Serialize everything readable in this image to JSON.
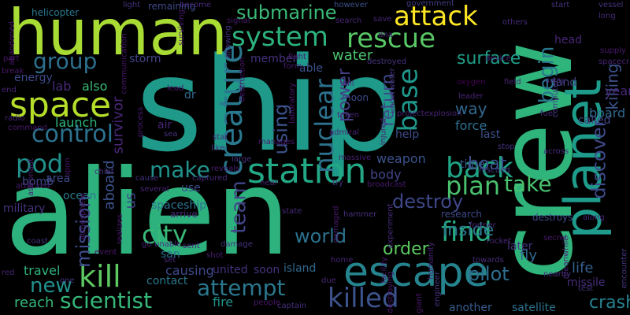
{
  "word_cloud": {
    "words": [
      {
        "text": "ship",
        "color": "#1f9a8a"
      },
      {
        "text": "alien",
        "color": "#2db27d"
      },
      {
        "text": "crew",
        "color": "#2fb47c"
      },
      {
        "text": "human",
        "color": "#a8db34"
      },
      {
        "text": "planet",
        "color": "#1e9b8a"
      },
      {
        "text": "escape",
        "color": "#25848e"
      },
      {
        "text": "attack",
        "color": "#fde725"
      },
      {
        "text": "rescue",
        "color": "#58c765"
      },
      {
        "text": "station",
        "color": "#22a884"
      },
      {
        "text": "space",
        "color": "#b5de2b"
      },
      {
        "text": "system",
        "color": "#2db27d"
      },
      {
        "text": "creature",
        "color": "#2a788e"
      },
      {
        "text": "killed",
        "color": "#3b528b"
      },
      {
        "text": "kill",
        "color": "#5ec962"
      },
      {
        "text": "control",
        "color": "#2c728e"
      },
      {
        "text": "find",
        "color": "#27ad81"
      },
      {
        "text": "base",
        "color": "#1f988b"
      },
      {
        "text": "scientist",
        "color": "#35b779"
      },
      {
        "text": "attempt",
        "color": "#2a788e"
      },
      {
        "text": "submarine",
        "color": "#3aba76"
      },
      {
        "text": "back",
        "color": "#20a486"
      },
      {
        "text": "group",
        "color": "#2d708e"
      },
      {
        "text": "pod",
        "color": "#21918c"
      },
      {
        "text": "nuclear",
        "color": "#2c728e"
      },
      {
        "text": "city",
        "color": "#38b977"
      },
      {
        "text": "plan",
        "color": "#4ac16d"
      },
      {
        "text": "make",
        "color": "#21918c"
      },
      {
        "text": "take",
        "color": "#48c16e"
      },
      {
        "text": "begin",
        "color": "#2a788e"
      },
      {
        "text": "surface",
        "color": "#1f9e89"
      },
      {
        "text": "discover",
        "color": "#3e4a89"
      },
      {
        "text": "destroy",
        "color": "#3f4788"
      },
      {
        "text": "pilot",
        "color": "#2e6e8e"
      },
      {
        "text": "crash",
        "color": "#26828e"
      },
      {
        "text": "world",
        "color": "#2c718e"
      },
      {
        "text": "new",
        "color": "#21918c"
      },
      {
        "text": "team",
        "color": "#414487"
      },
      {
        "text": "mission",
        "color": "#3e4c8a"
      },
      {
        "text": "return",
        "color": "#3e4a89"
      },
      {
        "text": "water",
        "color": "#4ac16d"
      },
      {
        "text": "using",
        "color": "#3b528b"
      },
      {
        "text": "power",
        "color": "#433e85"
      },
      {
        "text": "inside",
        "color": "#2a788e"
      },
      {
        "text": "order",
        "color": "#5ec962"
      },
      {
        "text": "killing",
        "color": "#3b528b"
      },
      {
        "text": "boat",
        "color": "#3b528b"
      },
      {
        "text": "way",
        "color": "#31688e"
      },
      {
        "text": "survivor",
        "color": "#482677"
      },
      {
        "text": "fly",
        "color": "#31688e"
      },
      {
        "text": "life",
        "color": "#355f8d"
      },
      {
        "text": "new",
        "color": "#2c728e"
      },
      {
        "text": "reach",
        "color": "#35b779"
      },
      {
        "text": "travel",
        "color": "#2db27d"
      },
      {
        "text": "lab",
        "color": "#482878"
      },
      {
        "text": "also",
        "color": "#3aba76"
      },
      {
        "text": "launch",
        "color": "#2fb47c"
      },
      {
        "text": "aboard",
        "color": "#3b528b"
      },
      {
        "text": "us",
        "color": "#3f4788"
      },
      {
        "text": "causing",
        "color": "#3e4989"
      },
      {
        "text": "fire",
        "color": "#21918c"
      },
      {
        "text": "island",
        "color": "#31688e"
      },
      {
        "text": "soon",
        "color": "#46337e"
      },
      {
        "text": "united",
        "color": "#46327e"
      },
      {
        "text": "board",
        "color": "#31688e"
      },
      {
        "text": "called",
        "color": "#414487"
      },
      {
        "text": "force",
        "color": "#2d708e"
      },
      {
        "text": "year",
        "color": "#482878"
      },
      {
        "text": "land",
        "color": "#414487"
      },
      {
        "text": "weapon",
        "color": "#3b528b"
      },
      {
        "text": "body",
        "color": "#414487"
      },
      {
        "text": "use",
        "color": "#3e4c8a"
      },
      {
        "text": "air",
        "color": "#482677"
      },
      {
        "text": "dr",
        "color": "#31688e"
      },
      {
        "text": "san",
        "color": "#2c728e"
      },
      {
        "text": "contact",
        "color": "#2a788e"
      },
      {
        "text": "missile",
        "color": "#472d7b"
      },
      {
        "text": "satellite",
        "color": "#2c728e"
      },
      {
        "text": "another",
        "color": "#365c8d"
      },
      {
        "text": "ocean",
        "color": "#2a788e"
      },
      {
        "text": "energy",
        "color": "#3e4a89"
      },
      {
        "text": "storm",
        "color": "#414487"
      },
      {
        "text": "member",
        "color": "#46327e"
      },
      {
        "text": "able",
        "color": "#3b528b"
      },
      {
        "text": "military",
        "color": "#46337e"
      },
      {
        "text": "bomb",
        "color": "#3e4a89"
      },
      {
        "text": "area",
        "color": "#3e4989"
      },
      {
        "text": "head",
        "color": "#482677"
      },
      {
        "text": "time",
        "color": "#38588c"
      },
      {
        "text": "help",
        "color": "#3e4c8a"
      },
      {
        "text": "last",
        "color": "#3b528b"
      },
      {
        "text": "later",
        "color": "#46337e"
      },
      {
        "text": "spaceship",
        "color": "#2c728e"
      },
      {
        "text": "arrive",
        "color": "#472d7b"
      },
      {
        "text": "research",
        "color": "#3e4a89"
      },
      {
        "text": "destroys",
        "color": "#3e4c8a"
      },
      {
        "text": "moon",
        "color": "#3e4989"
      },
      {
        "text": "remaining",
        "color": "#3e4989"
      },
      {
        "text": "helicopter",
        "color": "#2a788e"
      },
      {
        "text": "light",
        "color": "#46327e"
      },
      {
        "text": "become",
        "color": "#472a7a"
      },
      {
        "text": "however",
        "color": "#3b528b"
      },
      {
        "text": "government",
        "color": "#433e85"
      },
      {
        "text": "start",
        "color": "#46327e"
      },
      {
        "text": "vessel",
        "color": "#46327e"
      },
      {
        "text": "others",
        "color": "#472a7a"
      },
      {
        "text": "long",
        "color": "#472a7a"
      },
      {
        "text": "supply",
        "color": "#481a6c"
      },
      {
        "text": "spacecraft",
        "color": "#482475"
      },
      {
        "text": "device",
        "color": "#482475"
      },
      {
        "text": "away",
        "color": "#472d7b"
      },
      {
        "text": "field",
        "color": "#482475"
      },
      {
        "text": "fuel",
        "color": "#472a7a"
      },
      {
        "text": "computer",
        "color": "#433e85"
      },
      {
        "text": "oxygen",
        "color": "#440154"
      },
      {
        "text": "leader",
        "color": "#482475"
      },
      {
        "text": "stop",
        "color": "#46327e"
      },
      {
        "text": "across",
        "color": "#472a7a"
      },
      {
        "text": "rescued",
        "color": "#433e85"
      },
      {
        "text": "former",
        "color": "#482878"
      },
      {
        "text": "rocket",
        "color": "#482878"
      },
      {
        "text": "secret",
        "color": "#481769"
      },
      {
        "text": "along",
        "color": "#482475"
      },
      {
        "text": "encounter",
        "color": "#46337e"
      },
      {
        "text": "towards",
        "color": "#472d7b"
      },
      {
        "text": "nearby",
        "color": "#46327e"
      },
      {
        "text": "test",
        "color": "#46327e"
      },
      {
        "text": "lead",
        "color": "#481a6c"
      },
      {
        "text": "sea",
        "color": "#46327e"
      },
      {
        "text": "star",
        "color": "#472d7b"
      },
      {
        "text": "like",
        "color": "#46327e"
      },
      {
        "text": "large",
        "color": "#46327e"
      },
      {
        "text": "reveals",
        "color": "#481f70"
      },
      {
        "text": "near",
        "color": "#482475"
      },
      {
        "text": "try",
        "color": "#46327e"
      },
      {
        "text": "cause",
        "color": "#46327e"
      },
      {
        "text": "several",
        "color": "#482475"
      },
      {
        "text": "captured",
        "color": "#472a7a"
      },
      {
        "text": "massive",
        "color": "#481f70"
      },
      {
        "text": "broadcast",
        "color": "#481a6c"
      },
      {
        "text": "still",
        "color": "#472d7b"
      },
      {
        "text": "taken",
        "color": "#482475"
      },
      {
        "text": "admiral",
        "color": "#482475"
      },
      {
        "text": "save",
        "color": "#482475"
      },
      {
        "text": "dna",
        "color": "#482677"
      },
      {
        "text": "search",
        "color": "#482475"
      },
      {
        "text": "signal",
        "color": "#481a6c"
      },
      {
        "text": "fight",
        "color": "#481a6c"
      },
      {
        "text": "destroyed",
        "color": "#46327e"
      },
      {
        "text": "chief",
        "color": "#46327e"
      },
      {
        "text": "astronaut",
        "color": "#481f70"
      },
      {
        "text": "attacked",
        "color": "#481f70"
      },
      {
        "text": "command",
        "color": "#481a6c"
      },
      {
        "text": "radio",
        "color": "#482475"
      },
      {
        "text": "end",
        "color": "#482475"
      },
      {
        "text": "coast",
        "color": "#46327e"
      },
      {
        "text": "event",
        "color": "#481769"
      },
      {
        "text": "unable",
        "color": "#46327e"
      },
      {
        "text": "state",
        "color": "#472a7a"
      },
      {
        "text": "set",
        "color": "#482878"
      },
      {
        "text": "damage",
        "color": "#46327e"
      },
      {
        "text": "people",
        "color": "#481769"
      },
      {
        "text": "captain",
        "color": "#472d7b"
      },
      {
        "text": "home",
        "color": "#482475"
      },
      {
        "text": "due",
        "color": "#482475"
      },
      {
        "text": "one",
        "color": "#46327e"
      },
      {
        "text": "red",
        "color": "#482475"
      },
      {
        "text": "go",
        "color": "#482475"
      },
      {
        "text": "part",
        "color": "#481769"
      },
      {
        "text": "break",
        "color": "#481769"
      },
      {
        "text": "process",
        "color": "#481a6c"
      },
      {
        "text": "form",
        "color": "#481a6c"
      },
      {
        "text": "manages",
        "color": "#481a6c"
      },
      {
        "text": "injured",
        "color": "#481a6c"
      },
      {
        "text": "hammer",
        "color": "#46327e"
      },
      {
        "text": "facility",
        "color": "#481a6c"
      },
      {
        "text": "humanity",
        "color": "#482475"
      },
      {
        "text": "engineer",
        "color": "#46327e"
      },
      {
        "text": "giant",
        "color": "#481769"
      },
      {
        "text": "meanwhile",
        "color": "#482475"
      },
      {
        "text": "projectexplosion",
        "color": "#482475"
      },
      {
        "text": "allowing",
        "color": "#46327e"
      },
      {
        "text": "surviving",
        "color": "#481a6c"
      },
      {
        "text": "communication",
        "color": "#481769"
      },
      {
        "text": "abandoned",
        "color": "#481769"
      },
      {
        "text": "destruction",
        "color": "#481769"
      },
      {
        "text": "laboratory",
        "color": "#481769"
      },
      {
        "text": "underwater",
        "color": "#46327e"
      },
      {
        "text": "atmosphere",
        "color": "#481769"
      },
      {
        "text": "realizes",
        "color": "#481769"
      },
      {
        "text": "upon",
        "color": "#481769"
      },
      {
        "text": "experiment",
        "color": "#472a7a"
      },
      {
        "text": "destroying",
        "color": "#481769"
      },
      {
        "text": "damaged",
        "color": "#481a6c"
      },
      {
        "text": "sent",
        "color": "#482475"
      },
      {
        "text": "shot",
        "color": "#481a6c"
      }
    ]
  }
}
